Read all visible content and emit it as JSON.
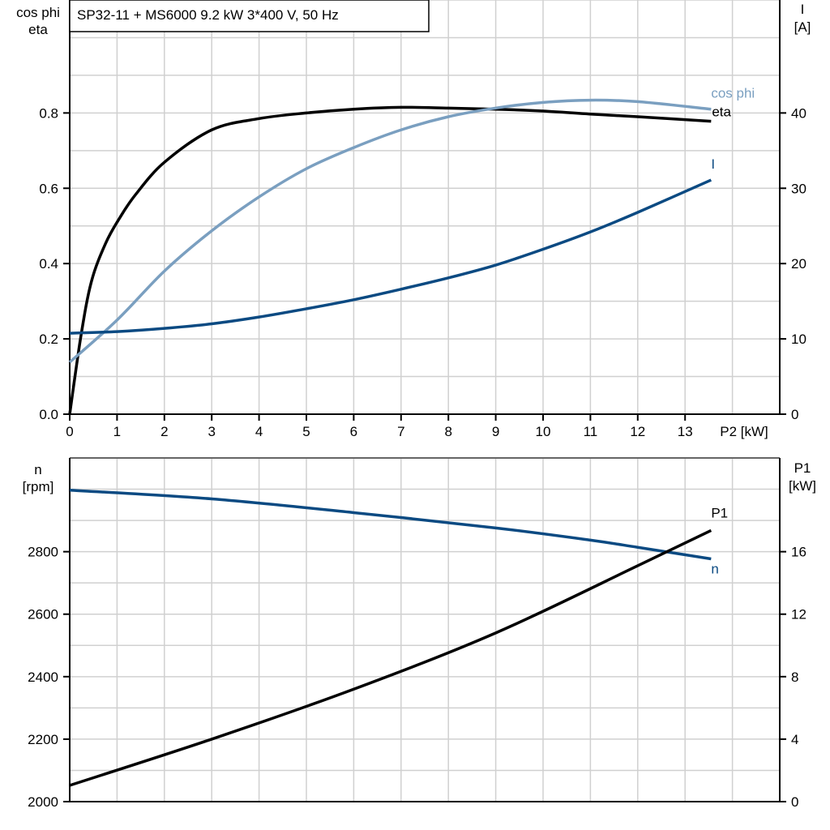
{
  "chart_data": [
    {
      "type": "line",
      "title": "SP32-11 + MS6000   9.2 kW   3*400 V, 50 Hz",
      "xlabel": "P2 [kW]",
      "ylabel_left": [
        "cos phi",
        "eta"
      ],
      "ylabel_right": [
        "I",
        "[A]"
      ],
      "xlim": [
        0,
        15
      ],
      "ylim_left": [
        0,
        1.1
      ],
      "ylim_right": [
        0,
        55
      ],
      "x_ticks": [
        0,
        1,
        2,
        3,
        4,
        5,
        6,
        7,
        8,
        9,
        10,
        11,
        12,
        13
      ],
      "y_ticks_left": [
        "0.0",
        "0.2",
        "0.4",
        "0.6",
        "0.8"
      ],
      "y_ticks_right": [
        "0",
        "10",
        "20",
        "30",
        "40"
      ],
      "grid": true,
      "series": [
        {
          "name": "eta",
          "axis": "left",
          "color": "#000000",
          "x": [
            0,
            0.24,
            0.46,
            0.76,
            1.05,
            1.39,
            2,
            3,
            4,
            5,
            6,
            7,
            8,
            9,
            10,
            11,
            12,
            13.55
          ],
          "y": [
            0,
            0.21,
            0.353,
            0.454,
            0.52,
            0.583,
            0.669,
            0.755,
            0.785,
            0.8,
            0.81,
            0.815,
            0.813,
            0.81,
            0.805,
            0.797,
            0.79,
            0.778
          ]
        },
        {
          "name": "cos phi",
          "axis": "left",
          "color": "#7a9fc0",
          "x": [
            0,
            1,
            2,
            3,
            4,
            5,
            6,
            7,
            8,
            9,
            10,
            11,
            12,
            13.55
          ],
          "y": [
            0.138,
            0.25,
            0.38,
            0.487,
            0.577,
            0.652,
            0.708,
            0.755,
            0.79,
            0.813,
            0.828,
            0.834,
            0.83,
            0.81
          ]
        },
        {
          "name": "I",
          "axis": "right",
          "color": "#0b4a82",
          "x": [
            0,
            1,
            2,
            3,
            4,
            5,
            6,
            7,
            8,
            9,
            10,
            11,
            12,
            13.55
          ],
          "y": [
            10.75,
            10.97,
            11.4,
            12.0,
            12.9,
            14.0,
            15.2,
            16.6,
            18.1,
            19.8,
            21.9,
            24.2,
            26.8,
            31.1
          ]
        }
      ]
    },
    {
      "type": "line",
      "xlim": [
        0,
        15
      ],
      "ylabel_left": [
        "n",
        "[rpm]"
      ],
      "ylabel_right": [
        "P1",
        "[kW]"
      ],
      "ylim_left": [
        2000,
        3100
      ],
      "ylim_right": [
        0,
        22
      ],
      "y_ticks_left": [
        "2000",
        "2200",
        "2400",
        "2600",
        "2800"
      ],
      "y_ticks_right": [
        "0",
        "4",
        "8",
        "12",
        "16"
      ],
      "grid": true,
      "series": [
        {
          "name": "n",
          "axis": "left",
          "color": "#0b4a82",
          "x": [
            0,
            3,
            6,
            9,
            11,
            12,
            13.55
          ],
          "y": [
            2997,
            2969,
            2925,
            2876,
            2837,
            2814,
            2777
          ]
        },
        {
          "name": "P1",
          "axis": "right",
          "color": "#000000",
          "x": [
            0,
            3,
            6,
            9,
            12,
            13.55
          ],
          "y": [
            1.04,
            4.0,
            7.2,
            10.8,
            15.1,
            17.36
          ]
        }
      ]
    }
  ]
}
